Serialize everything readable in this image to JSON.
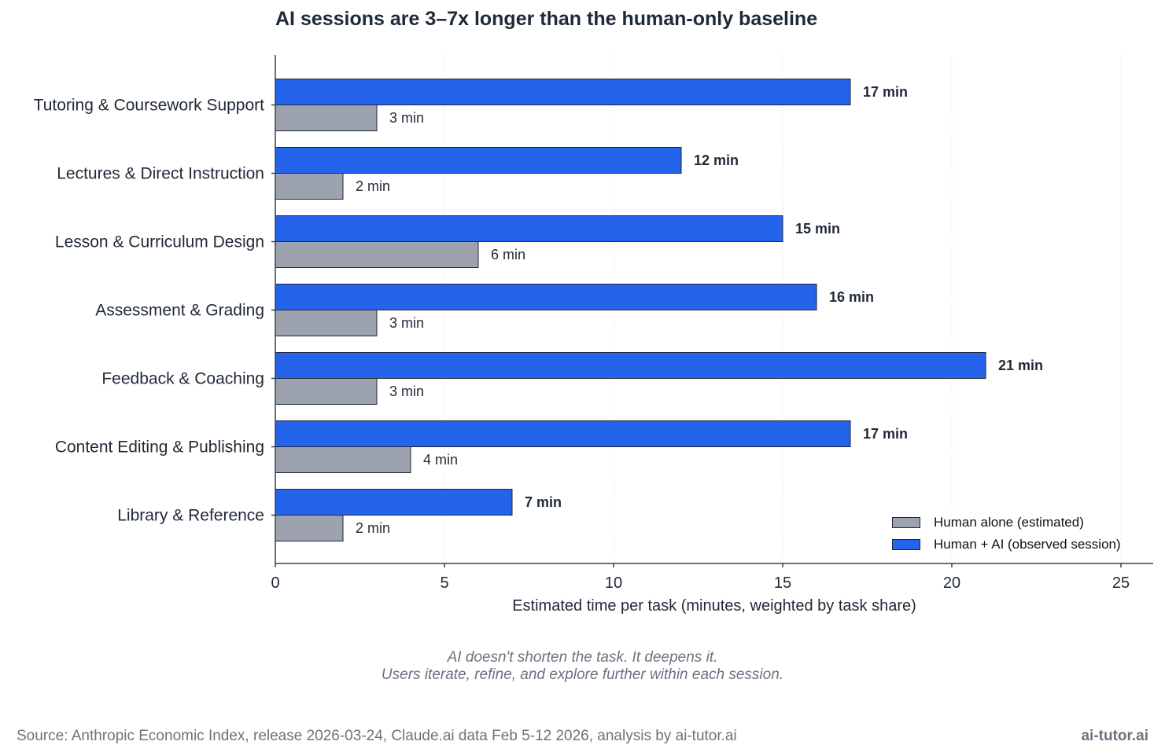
{
  "title": "AI sessions are 3–7x longer than the human-only baseline",
  "caption": {
    "line1": "AI doesn't shorten the task. It deepens it.",
    "line2": "Users iterate, refine, and explore further within each session."
  },
  "footer": {
    "source": "Source: Anthropic Economic Index, release 2026-03-24, Claude.ai data Feb 5-12 2026, analysis by ai-tutor.ai",
    "brand": "ai-tutor.ai"
  },
  "colors": {
    "human": "#9ca3af",
    "ai": "#2563eb",
    "text": "#1f2937",
    "grid": "#e5e7eb",
    "axis": "#374151"
  },
  "chart_data": {
    "type": "bar",
    "orientation": "horizontal",
    "categories": [
      "Tutoring & Coursework Support",
      "Lectures & Direct Instruction",
      "Lesson & Curriculum Design",
      "Assessment & Grading",
      "Feedback & Coaching",
      "Content Editing & Publishing",
      "Library & Reference"
    ],
    "series": [
      {
        "name": "Human + AI (observed session)",
        "values": [
          17,
          12,
          15,
          16,
          21,
          17,
          7
        ],
        "labels": [
          "17 min",
          "12 min",
          "15 min",
          "16 min",
          "21 min",
          "17 min",
          "7 min"
        ]
      },
      {
        "name": "Human alone (estimated)",
        "values": [
          3,
          2,
          6,
          3,
          3,
          4,
          2
        ],
        "labels": [
          "3 min",
          "2 min",
          "6 min",
          "3 min",
          "3 min",
          "4 min",
          "2 min"
        ]
      }
    ],
    "xlabel": "Estimated time per task (minutes, weighted by task share)",
    "ylabel": "",
    "xlim": [
      0,
      26
    ],
    "xticks": [
      0,
      5,
      10,
      15,
      20,
      25
    ],
    "grid": "vertical dotted",
    "legend_position": "bottom-right",
    "legend": [
      "Human alone (estimated)",
      "Human + AI (observed session)"
    ]
  }
}
